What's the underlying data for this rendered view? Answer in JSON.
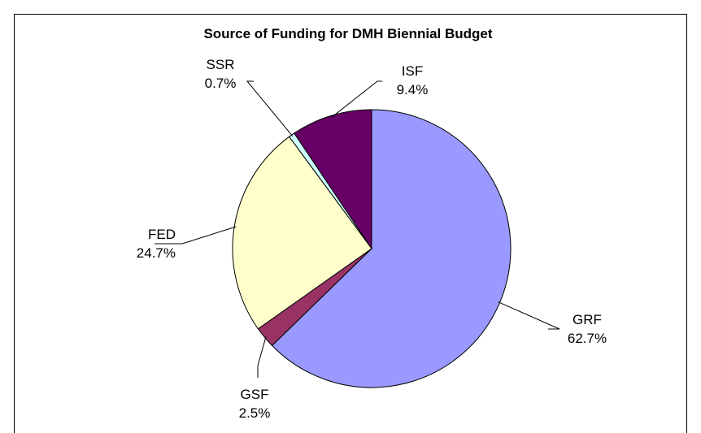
{
  "chart_data": {
    "type": "pie",
    "title": "Source of Funding for DMH Biennial Budget",
    "slices": [
      {
        "label": "GRF",
        "value": 62.7,
        "value_label": "62.7%",
        "color": "#9999ff"
      },
      {
        "label": "GSF",
        "value": 2.5,
        "value_label": "2.5%",
        "color": "#993366"
      },
      {
        "label": "FED",
        "value": 24.7,
        "value_label": "24.7%",
        "color": "#ffffcc"
      },
      {
        "label": "SSR",
        "value": 0.7,
        "value_label": "0.7%",
        "color": "#ccffff"
      },
      {
        "label": "ISF",
        "value": 9.4,
        "value_label": "9.4%",
        "color": "#660066"
      }
    ],
    "start_angle": "12 o'clock",
    "direction": "clockwise",
    "legend": "none",
    "data_labels": "outside with leader lines"
  }
}
